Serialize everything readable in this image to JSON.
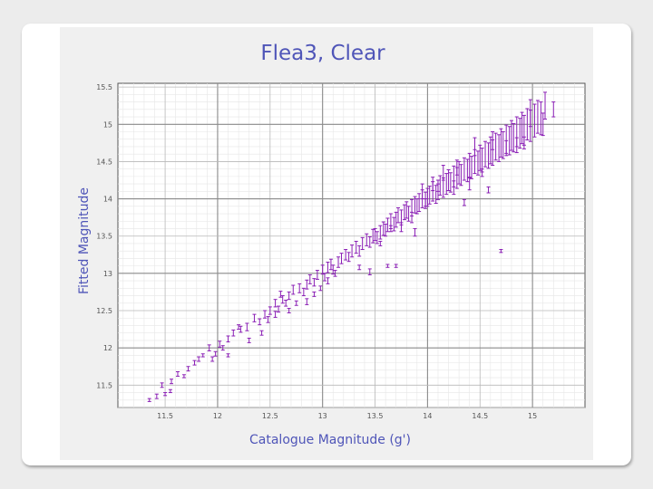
{
  "chart_data": {
    "type": "scatter",
    "title": "Flea3, Clear",
    "xlabel": "Catalogue Magnitude (g')",
    "ylabel": "Fitted Magnitude",
    "xlim": [
      11.05,
      15.5
    ],
    "ylim": [
      11.2,
      15.55
    ],
    "x_ticks": [
      11.5,
      12,
      12.5,
      13,
      13.5,
      14,
      14.5,
      15
    ],
    "x_tick_labels": [
      "11.5",
      "12",
      "12.5",
      "13",
      "13.5",
      "14",
      "14.5",
      "15"
    ],
    "y_ticks": [
      11.5,
      12,
      12.5,
      13,
      13.5,
      14,
      14.5,
      15,
      15.5
    ],
    "y_tick_labels": [
      "11.5",
      "12",
      "12.5",
      "13",
      "13.5",
      "14",
      "14.5",
      "15",
      "15.5"
    ],
    "grid": true,
    "marker_color": "#8a1fb5",
    "series": [
      {
        "name": "",
        "points": [
          [
            11.35,
            11.3,
            0.02
          ],
          [
            11.42,
            11.35,
            0.03
          ],
          [
            11.5,
            11.38,
            0.02
          ],
          [
            11.47,
            11.5,
            0.03
          ],
          [
            11.56,
            11.55,
            0.03
          ],
          [
            11.62,
            11.65,
            0.03
          ],
          [
            11.68,
            11.62,
            0.02
          ],
          [
            11.72,
            11.72,
            0.03
          ],
          [
            11.78,
            11.8,
            0.03
          ],
          [
            11.82,
            11.85,
            0.03
          ],
          [
            11.86,
            11.9,
            0.02
          ],
          [
            11.92,
            12.0,
            0.04
          ],
          [
            11.98,
            11.92,
            0.03
          ],
          [
            12.02,
            12.05,
            0.04
          ],
          [
            12.05,
            12.0,
            0.03
          ],
          [
            12.1,
            12.12,
            0.04
          ],
          [
            12.15,
            12.2,
            0.04
          ],
          [
            12.22,
            12.25,
            0.04
          ],
          [
            12.28,
            12.28,
            0.05
          ],
          [
            12.35,
            12.4,
            0.05
          ],
          [
            12.4,
            12.35,
            0.04
          ],
          [
            12.45,
            12.45,
            0.05
          ],
          [
            12.5,
            12.5,
            0.05
          ],
          [
            12.55,
            12.6,
            0.05
          ],
          [
            12.58,
            12.52,
            0.04
          ],
          [
            12.62,
            12.65,
            0.05
          ],
          [
            12.68,
            12.7,
            0.05
          ],
          [
            12.72,
            12.78,
            0.06
          ],
          [
            12.78,
            12.8,
            0.06
          ],
          [
            12.82,
            12.75,
            0.05
          ],
          [
            12.85,
            12.85,
            0.06
          ],
          [
            12.88,
            12.92,
            0.06
          ],
          [
            12.92,
            12.88,
            0.05
          ],
          [
            12.95,
            12.98,
            0.06
          ],
          [
            13.0,
            13.05,
            0.06
          ],
          [
            13.02,
            12.95,
            0.05
          ],
          [
            13.05,
            13.08,
            0.07
          ],
          [
            13.08,
            13.12,
            0.07
          ],
          [
            13.1,
            13.05,
            0.06
          ],
          [
            13.15,
            13.15,
            0.07
          ],
          [
            13.18,
            13.2,
            0.07
          ],
          [
            13.22,
            13.25,
            0.07
          ],
          [
            13.25,
            13.22,
            0.06
          ],
          [
            13.28,
            13.3,
            0.08
          ],
          [
            13.32,
            13.35,
            0.08
          ],
          [
            13.35,
            13.3,
            0.07
          ],
          [
            13.38,
            13.4,
            0.08
          ],
          [
            13.42,
            13.45,
            0.08
          ],
          [
            13.45,
            13.42,
            0.07
          ],
          [
            13.48,
            13.5,
            0.09
          ],
          [
            13.5,
            13.52,
            0.08
          ],
          [
            13.52,
            13.48,
            0.08
          ],
          [
            13.55,
            13.55,
            0.09
          ],
          [
            13.58,
            13.6,
            0.09
          ],
          [
            13.6,
            13.58,
            0.08
          ],
          [
            13.62,
            13.65,
            0.09
          ],
          [
            13.65,
            13.7,
            0.1
          ],
          [
            13.68,
            13.66,
            0.09
          ],
          [
            13.7,
            13.72,
            0.1
          ],
          [
            13.72,
            13.78,
            0.1
          ],
          [
            13.75,
            13.75,
            0.1
          ],
          [
            13.78,
            13.82,
            0.1
          ],
          [
            13.8,
            13.85,
            0.11
          ],
          [
            13.82,
            13.8,
            0.1
          ],
          [
            13.85,
            13.88,
            0.11
          ],
          [
            13.88,
            13.92,
            0.11
          ],
          [
            13.9,
            13.9,
            0.1
          ],
          [
            13.92,
            13.95,
            0.12
          ],
          [
            13.95,
            14.0,
            0.12
          ],
          [
            13.98,
            13.98,
            0.11
          ],
          [
            14.0,
            14.02,
            0.12
          ],
          [
            14.02,
            14.05,
            0.12
          ],
          [
            14.05,
            14.1,
            0.13
          ],
          [
            14.08,
            14.06,
            0.12
          ],
          [
            14.1,
            14.12,
            0.13
          ],
          [
            14.12,
            14.18,
            0.13
          ],
          [
            14.15,
            14.15,
            0.13
          ],
          [
            14.18,
            14.2,
            0.14
          ],
          [
            14.2,
            14.25,
            0.14
          ],
          [
            14.22,
            14.22,
            0.13
          ],
          [
            14.25,
            14.3,
            0.14
          ],
          [
            14.28,
            14.28,
            0.14
          ],
          [
            14.3,
            14.35,
            0.15
          ],
          [
            14.32,
            14.32,
            0.14
          ],
          [
            14.35,
            14.4,
            0.15
          ],
          [
            14.38,
            14.38,
            0.15
          ],
          [
            14.4,
            14.45,
            0.16
          ],
          [
            14.42,
            14.42,
            0.15
          ],
          [
            14.45,
            14.5,
            0.16
          ],
          [
            14.48,
            14.48,
            0.16
          ],
          [
            14.5,
            14.55,
            0.17
          ],
          [
            14.52,
            14.52,
            0.16
          ],
          [
            14.55,
            14.6,
            0.17
          ],
          [
            14.58,
            14.58,
            0.17
          ],
          [
            14.6,
            14.65,
            0.18
          ],
          [
            14.62,
            14.62,
            0.17
          ],
          [
            14.65,
            14.7,
            0.18
          ],
          [
            14.68,
            14.68,
            0.18
          ],
          [
            14.7,
            14.75,
            0.19
          ],
          [
            14.72,
            14.72,
            0.18
          ],
          [
            14.75,
            14.8,
            0.19
          ],
          [
            14.78,
            14.78,
            0.19
          ],
          [
            14.8,
            14.85,
            0.2
          ],
          [
            14.82,
            14.82,
            0.19
          ],
          [
            14.85,
            14.9,
            0.2
          ],
          [
            14.88,
            14.88,
            0.2
          ],
          [
            14.9,
            14.95,
            0.21
          ],
          [
            14.92,
            14.92,
            0.2
          ],
          [
            14.95,
            15.0,
            0.21
          ],
          [
            14.98,
            14.98,
            0.21
          ],
          [
            15.02,
            15.05,
            0.22
          ],
          [
            15.05,
            15.1,
            0.22
          ],
          [
            15.08,
            15.08,
            0.22
          ],
          [
            15.12,
            15.25,
            0.18
          ],
          [
            15.2,
            15.2,
            0.1
          ],
          [
            14.52,
            14.35,
            0.05
          ],
          [
            14.58,
            14.12,
            0.04
          ],
          [
            14.7,
            13.3,
            0.02
          ],
          [
            14.35,
            13.95,
            0.04
          ],
          [
            13.98,
            13.95,
            0.05
          ],
          [
            13.88,
            13.55,
            0.05
          ],
          [
            13.65,
            13.6,
            0.04
          ],
          [
            13.55,
            13.4,
            0.03
          ],
          [
            13.45,
            13.02,
            0.04
          ],
          [
            13.62,
            13.1,
            0.02
          ],
          [
            13.7,
            13.1,
            0.02
          ],
          [
            14.1,
            14.15,
            0.05
          ],
          [
            12.85,
            12.62,
            0.04
          ],
          [
            12.68,
            12.5,
            0.03
          ],
          [
            12.3,
            12.1,
            0.03
          ],
          [
            12.1,
            11.9,
            0.02
          ],
          [
            11.95,
            11.85,
            0.03
          ],
          [
            11.55,
            11.42,
            0.02
          ],
          [
            12.6,
            12.72,
            0.04
          ],
          [
            12.48,
            12.38,
            0.04
          ],
          [
            12.65,
            12.6,
            0.04
          ],
          [
            12.92,
            12.72,
            0.03
          ],
          [
            12.98,
            12.8,
            0.03
          ],
          [
            13.05,
            12.9,
            0.04
          ],
          [
            13.35,
            13.08,
            0.03
          ],
          [
            13.12,
            13.0,
            0.04
          ],
          [
            12.75,
            12.6,
            0.03
          ],
          [
            12.2,
            12.28,
            0.03
          ],
          [
            12.42,
            12.2,
            0.03
          ],
          [
            12.55,
            12.45,
            0.04
          ],
          [
            14.45,
            14.7,
            0.12
          ],
          [
            14.62,
            14.78,
            0.12
          ],
          [
            14.75,
            14.68,
            0.1
          ],
          [
            14.85,
            14.72,
            0.1
          ],
          [
            14.92,
            14.75,
            0.08
          ],
          [
            14.15,
            14.35,
            0.1
          ],
          [
            14.28,
            14.42,
            0.1
          ],
          [
            14.05,
            14.2,
            0.09
          ],
          [
            13.85,
            13.75,
            0.07
          ],
          [
            13.75,
            13.62,
            0.06
          ],
          [
            15.1,
            15.0,
            0.15
          ],
          [
            14.98,
            15.15,
            0.18
          ],
          [
            14.4,
            14.2,
            0.08
          ],
          [
            14.25,
            14.15,
            0.09
          ],
          [
            13.95,
            14.1,
            0.1
          ]
        ]
      }
    ]
  }
}
